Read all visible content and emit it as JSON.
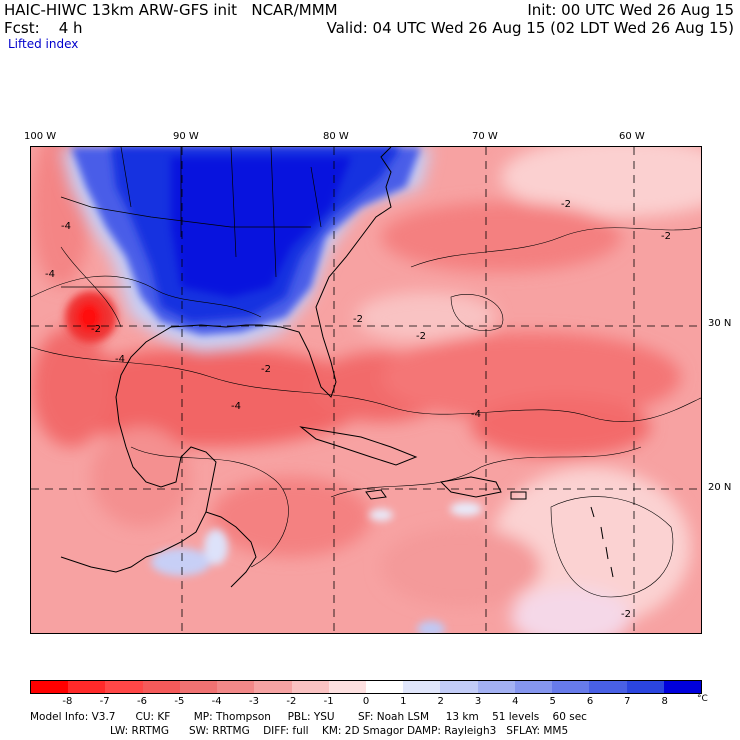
{
  "header": {
    "line1_left": "HAIC-HIWC 13km ARW-GFS init   NCAR/MMM",
    "line2_left": "Fcst:    4 h",
    "field": "Lifted index",
    "line1_right": "Init: 00 UTC Wed 26 Aug 15",
    "line2_right": "Valid: 04 UTC Wed 26 Aug 15 (02 LDT Wed 26 Aug 15)"
  },
  "map": {
    "lon_labels": [
      "100 W",
      "90 W",
      "80 W",
      "70 W",
      "60 W"
    ],
    "lat_labels": [
      "30 N",
      "20 N"
    ],
    "contour_labels": [
      "-2",
      "-2",
      "-2",
      "-2",
      "-2",
      "-2",
      "-4",
      "-4",
      "-4",
      "-4",
      "-4",
      "-2"
    ]
  },
  "colorbar": {
    "colors": [
      "#ff0000",
      "#ff2a2a",
      "#ff4747",
      "#f55a5a",
      "#f07272",
      "#f28888",
      "#f6a3a3",
      "#fac2c2",
      "#fde0e0",
      "#ffffff",
      "#e0e6fb",
      "#c2ccf7",
      "#a3b1f3",
      "#8596ef",
      "#677bea",
      "#4960e5",
      "#2b45e0",
      "#0000dd"
    ],
    "ticks": [
      "-8",
      "-7",
      "-6",
      "-5",
      "-4",
      "-3",
      "-2",
      "-1",
      "0",
      "1",
      "2",
      "3",
      "4",
      "5",
      "6",
      "7",
      "8"
    ],
    "unit": "°C"
  },
  "model_info": {
    "line1": "Model Info: V3.7      CU: KF       MP: Thompson     PBL: YSU       SF: Noah LSM     13 km    51 levels    60 sec",
    "line2": "LW: RRTMG      SW: RRTMG    DIFF: full    KM: 2D Smagor DAMP: Rayleigh3   SFLAY: MM5"
  }
}
